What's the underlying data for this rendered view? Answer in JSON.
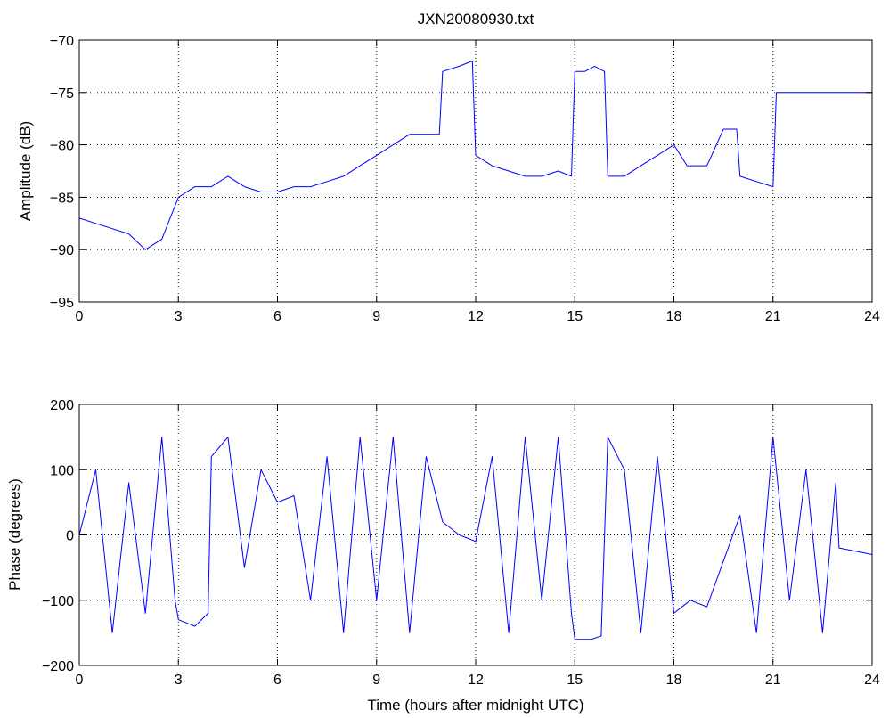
{
  "chart_data": [
    {
      "type": "line",
      "title": "JXN20080930.txt",
      "xlabel": "",
      "ylabel": "Amplitude (dB)",
      "xlim": [
        0,
        24
      ],
      "ylim": [
        -95,
        -70
      ],
      "xticks": [
        0,
        3,
        6,
        9,
        12,
        15,
        18,
        21,
        24
      ],
      "yticks": [
        -95,
        -90,
        -85,
        -80,
        -75,
        -70
      ],
      "grid": true,
      "color": "#0000ff",
      "series": [
        {
          "x": [
            0,
            0.5,
            1.0,
            1.5,
            2.0,
            2.5,
            3.0,
            3.5,
            4.0,
            4.5,
            5.0,
            5.5,
            6.0,
            6.5,
            7.0,
            7.5,
            8.0,
            8.5,
            9.0,
            9.5,
            10.0,
            10.5,
            10.9,
            11.0,
            11.5,
            11.9,
            12.0,
            12.5,
            13.0,
            13.5,
            14.0,
            14.5,
            14.9,
            15.0,
            15.3,
            15.6,
            15.9,
            16.0,
            16.5,
            17.0,
            17.5,
            18.0,
            18.4,
            18.5,
            19.0,
            19.5,
            19.9,
            20.0,
            20.5,
            21.0,
            21.1,
            21.5,
            22.0,
            22.5,
            23.0,
            23.5,
            24.0
          ],
          "y": [
            -87,
            -87.5,
            -88,
            -88.5,
            -90,
            -89,
            -85,
            -84,
            -84,
            -83,
            -84,
            -84.5,
            -84.5,
            -84,
            -84,
            -83.5,
            -83,
            -82,
            -81,
            -80,
            -79,
            -79,
            -79,
            -73,
            -72.5,
            -72,
            -81,
            -82,
            -82.5,
            -83,
            -83,
            -82.5,
            -83,
            -73,
            -73,
            -72.5,
            -73,
            -83,
            -83,
            -82,
            -81,
            -80,
            -82,
            -82,
            -82,
            -78.5,
            -78.5,
            -83,
            -83.5,
            -84,
            -75,
            -75,
            -75,
            -75,
            -75,
            -75,
            -75
          ]
        }
      ]
    },
    {
      "type": "line",
      "title": "",
      "xlabel": "Time (hours after midnight UTC)",
      "ylabel": "Phase (degrees)",
      "xlim": [
        0,
        24
      ],
      "ylim": [
        -200,
        200
      ],
      "xticks": [
        0,
        3,
        6,
        9,
        12,
        15,
        18,
        21,
        24
      ],
      "yticks": [
        -200,
        -100,
        0,
        100,
        200
      ],
      "grid": true,
      "color": "#0000ff",
      "series": [
        {
          "x": [
            0,
            0.5,
            1.0,
            1.5,
            2.0,
            2.5,
            2.9,
            3.0,
            3.5,
            3.9,
            4.0,
            4.5,
            5.0,
            5.5,
            6.0,
            6.5,
            7.0,
            7.5,
            8.0,
            8.5,
            9.0,
            9.5,
            10.0,
            10.5,
            11.0,
            11.5,
            12.0,
            12.5,
            13.0,
            13.5,
            14.0,
            14.5,
            14.9,
            15.0,
            15.5,
            15.8,
            16.0,
            16.5,
            17.0,
            17.5,
            18.0,
            18.5,
            19.0,
            19.5,
            20.0,
            20.5,
            21.0,
            21.5,
            22.0,
            22.5,
            22.9,
            23.0,
            23.5,
            24.0
          ],
          "y": [
            0,
            100,
            -150,
            80,
            -120,
            150,
            -100,
            -130,
            -140,
            -120,
            120,
            150,
            -50,
            100,
            50,
            60,
            -100,
            120,
            -150,
            150,
            -100,
            150,
            -150,
            120,
            20,
            0,
            -10,
            120,
            -150,
            150,
            -100,
            150,
            -120,
            -160,
            -160,
            -155,
            150,
            100,
            -150,
            120,
            -120,
            -100,
            -110,
            -40,
            30,
            -150,
            150,
            -100,
            100,
            -150,
            80,
            -20,
            -25,
            -30
          ]
        }
      ]
    }
  ]
}
